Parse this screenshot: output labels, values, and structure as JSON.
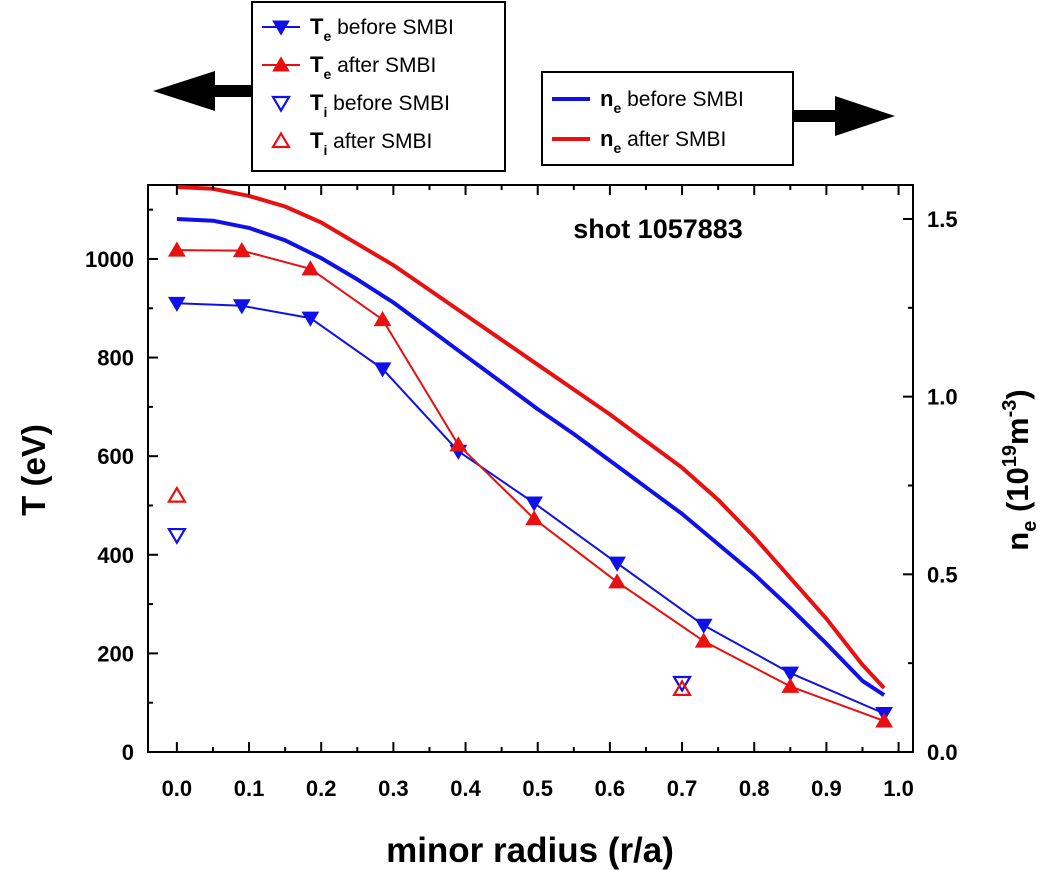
{
  "chart_data": {
    "type": "line",
    "annotation": "shot 1057883",
    "xlabel": "minor radius (r/a)",
    "ylabel_left": "T (eV)",
    "ylabel_right_parts": [
      "n",
      "e",
      " (10",
      "19",
      "m",
      "-3",
      ")"
    ],
    "xlim": [
      -0.04,
      1.02
    ],
    "ylim_left": [
      0,
      1150
    ],
    "ylim_right": [
      0,
      1.5956
    ],
    "x_ticks": [
      "0.0",
      "0.1",
      "0.2",
      "0.3",
      "0.4",
      "0.5",
      "0.6",
      "0.7",
      "0.8",
      "0.9",
      "1.0"
    ],
    "x_tick_values": [
      0,
      0.1,
      0.2,
      0.3,
      0.4,
      0.5,
      0.6,
      0.7,
      0.8,
      0.9,
      1.0
    ],
    "y_left_ticks": [
      "0",
      "200",
      "400",
      "600",
      "800",
      "1000"
    ],
    "y_left_tick_values": [
      0,
      200,
      400,
      600,
      800,
      1000
    ],
    "y_right_ticks": [
      "0.0",
      "0.5",
      "1.0",
      "1.5"
    ],
    "y_right_tick_values": [
      0,
      0.5,
      1.0,
      1.5
    ],
    "grid": false,
    "legend_left_position": "top-left, outside the plot",
    "legend_right_position": "top-right, outside the plot",
    "series": [
      {
        "name": "T_e before SMBI",
        "name_parts": [
          "T",
          "e",
          " before SMBI"
        ],
        "axis": "left",
        "color": "#1010e8",
        "marker": "filled-down-triangle",
        "line": true,
        "x": [
          0.0,
          0.09,
          0.185,
          0.285,
          0.39,
          0.495,
          0.61,
          0.73,
          0.85,
          0.98
        ],
        "y": [
          910,
          905,
          880,
          777,
          610,
          505,
          383,
          257,
          160,
          78
        ]
      },
      {
        "name": "T_e after SMBI",
        "name_parts": [
          "T",
          "e",
          " after SMBI"
        ],
        "axis": "left",
        "color": "#e81010",
        "marker": "filled-up-triangle",
        "line": true,
        "x": [
          0.0,
          0.09,
          0.185,
          0.285,
          0.39,
          0.495,
          0.61,
          0.73,
          0.85,
          0.98
        ],
        "y": [
          1018,
          1017,
          980,
          877,
          623,
          473,
          345,
          225,
          133,
          63
        ]
      },
      {
        "name": "T_i before SMBI",
        "name_parts": [
          "T",
          "i",
          " before SMBI"
        ],
        "axis": "left",
        "color": "#1010e8",
        "marker": "open-down-triangle",
        "line": false,
        "x": [
          0.0,
          0.7
        ],
        "y": [
          440,
          140
        ]
      },
      {
        "name": "T_i after SMBI",
        "name_parts": [
          "T",
          "i",
          " after SMBI"
        ],
        "axis": "left",
        "color": "#e81010",
        "marker": "open-up-triangle",
        "line": false,
        "x": [
          0.0,
          0.7
        ],
        "y": [
          520,
          128
        ]
      },
      {
        "name": "n_e before SMBI",
        "name_parts": [
          "n",
          "e",
          " before SMBI"
        ],
        "axis": "right",
        "color": "#1010e8",
        "marker": "none",
        "line": true,
        "x": [
          0.0,
          0.05,
          0.1,
          0.15,
          0.2,
          0.25,
          0.3,
          0.35,
          0.4,
          0.45,
          0.5,
          0.55,
          0.6,
          0.65,
          0.7,
          0.75,
          0.8,
          0.85,
          0.9,
          0.95,
          0.98
        ],
        "y": [
          1.5,
          1.495,
          1.475,
          1.44,
          1.39,
          1.33,
          1.265,
          1.19,
          1.115,
          1.04,
          0.965,
          0.895,
          0.82,
          0.745,
          0.67,
          0.585,
          0.5,
          0.405,
          0.305,
          0.2,
          0.16
        ]
      },
      {
        "name": "n_e after SMBI",
        "name_parts": [
          "n",
          "e",
          " after SMBI"
        ],
        "axis": "right",
        "color": "#e81010",
        "marker": "none",
        "line": true,
        "x": [
          0.0,
          0.05,
          0.1,
          0.15,
          0.2,
          0.25,
          0.3,
          0.35,
          0.4,
          0.45,
          0.5,
          0.55,
          0.6,
          0.65,
          0.7,
          0.75,
          0.8,
          0.85,
          0.9,
          0.95,
          0.98
        ],
        "y": [
          1.59,
          1.585,
          1.565,
          1.535,
          1.49,
          1.43,
          1.37,
          1.3,
          1.23,
          1.16,
          1.09,
          1.02,
          0.95,
          0.875,
          0.8,
          0.71,
          0.605,
          0.49,
          0.375,
          0.245,
          0.18
        ]
      }
    ]
  }
}
